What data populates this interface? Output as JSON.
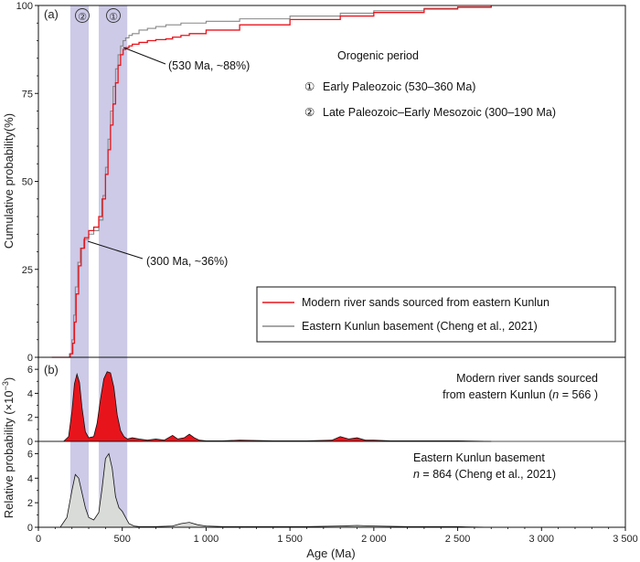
{
  "chart_data": [
    {
      "type": "line",
      "panel_label": "(a)",
      "ylabel": "Cumulative probability(%)",
      "xlim": [
        0,
        3500
      ],
      "ylim": [
        0,
        100
      ],
      "yticks": [
        0,
        25,
        50,
        75,
        100
      ],
      "series": [
        {
          "name": "Modern river sands sourced from eastern Kunlun",
          "color": "#e8141c",
          "x": [
            80,
            190,
            205,
            215,
            225,
            240,
            255,
            275,
            300,
            330,
            360,
            380,
            400,
            415,
            430,
            445,
            460,
            475,
            490,
            505,
            520,
            540,
            560,
            600,
            650,
            700,
            760,
            800,
            850,
            900,
            1000,
            1200,
            1500,
            1800,
            2000,
            2300,
            2500,
            2700
          ],
          "y": [
            0,
            1,
            4,
            10,
            18,
            26,
            31,
            34,
            36,
            37,
            40,
            45,
            52,
            59,
            66,
            72,
            78,
            83,
            86,
            87.5,
            88,
            88.5,
            89,
            89.5,
            90,
            90.3,
            90.5,
            91,
            91.5,
            92,
            93,
            94.5,
            96,
            97,
            98,
            99,
            99.5,
            100
          ]
        },
        {
          "name": "Eastern Kunlun basement (Cheng et al., 2021)",
          "color": "#888888",
          "x": [
            75,
            185,
            200,
            210,
            220,
            235,
            250,
            270,
            300,
            330,
            360,
            385,
            400,
            415,
            430,
            445,
            460,
            475,
            490,
            505,
            520,
            540,
            560,
            600,
            650,
            700,
            760,
            850,
            1000,
            1200,
            1500,
            1800,
            2000,
            2300,
            2500,
            2700
          ],
          "y": [
            0,
            1,
            5,
            12,
            20,
            27,
            31,
            33.5,
            35,
            36,
            39,
            46,
            54,
            62,
            70,
            77,
            82,
            86,
            88.5,
            90,
            90.8,
            91.5,
            92,
            93,
            93.5,
            94,
            94.5,
            95,
            95.5,
            96.2,
            97,
            97.8,
            98.5,
            99.2,
            99.6,
            100
          ]
        }
      ],
      "annotations": [
        {
          "text": "(530 Ma, ~88%)",
          "x": 530,
          "y": 88
        },
        {
          "text": "(300 Ma, ~36%)",
          "x": 300,
          "y": 36
        }
      ],
      "orogenic_title": "Orogenic period",
      "orogenic_periods": [
        {
          "symbol": "①",
          "label": "Early Paleozoic (530–360 Ma)",
          "range": [
            360,
            530
          ]
        },
        {
          "symbol": "②",
          "label": "Late Paleozoic–Early Mesozoic (300–190 Ma)",
          "range": [
            190,
            300
          ]
        }
      ],
      "legend_position": "bottom-right"
    },
    {
      "type": "area",
      "panel_label": "(b)",
      "ylabel": "Relative probability (×10⁻³)",
      "ylabel_main": "Relative probability (×10",
      "ylabel_exp": "−3",
      "ylabel_close": ")",
      "xlabel": "Age (Ma)",
      "xlim": [
        0,
        3500
      ],
      "xticks": [
        0,
        500,
        1000,
        1500,
        2000,
        2500,
        3000,
        3500
      ],
      "xtick_labels": [
        "0",
        "500",
        "1 000",
        "1 500",
        "2 000",
        "2 500",
        "3 000",
        "3 500"
      ],
      "subplots": [
        {
          "name": "Modern river sands sourced from eastern Kunlun",
          "label_line1": "Modern river sands sourced",
          "label_line2_pre": "from eastern Kunlun (",
          "label_n": "n",
          "label_line2_post": " = 566 )",
          "color": "#e8141c",
          "ylim": [
            0,
            7
          ],
          "yticks": [
            0,
            2,
            4,
            6
          ],
          "x": [
            0,
            150,
            180,
            200,
            215,
            230,
            245,
            260,
            280,
            300,
            330,
            350,
            370,
            390,
            410,
            430,
            450,
            470,
            490,
            510,
            530,
            560,
            600,
            650,
            700,
            750,
            800,
            830,
            870,
            900,
            930,
            960,
            1000,
            1100,
            1200,
            1400,
            1600,
            1750,
            1800,
            1850,
            1900,
            1950,
            2000,
            2100,
            2300,
            2500,
            2700
          ],
          "y": [
            0,
            0,
            0.4,
            2.5,
            4.8,
            5.6,
            4.9,
            2.8,
            0.8,
            0.3,
            0.4,
            1.5,
            3.5,
            5.2,
            5.8,
            5.7,
            4.5,
            2.2,
            0.9,
            0.4,
            0.2,
            0.3,
            0.2,
            0.1,
            0.2,
            0.1,
            0.5,
            0.2,
            0.3,
            0.6,
            0.3,
            0.1,
            0.05,
            0.05,
            0.1,
            0.05,
            0.05,
            0.1,
            0.4,
            0.2,
            0.3,
            0.1,
            0.1,
            0.05,
            0.05,
            0.05,
            0
          ]
        },
        {
          "name": "Eastern Kunlun basement",
          "label_line1": "Eastern Kunlun basement",
          "label_n": "n",
          "label_line2_post": " = 864 (Cheng et al., 2021)",
          "color": "#d9dbd8",
          "ylim": [
            0,
            7
          ],
          "yticks": [
            0,
            2,
            4,
            6
          ],
          "x": [
            0,
            130,
            170,
            200,
            220,
            240,
            260,
            280,
            300,
            330,
            360,
            380,
            400,
            420,
            440,
            460,
            480,
            500,
            520,
            540,
            570,
            600,
            700,
            800,
            850,
            900,
            950,
            1000,
            1100,
            1300,
            1600,
            1800,
            1900,
            2000,
            2200,
            2500,
            2700
          ],
          "y": [
            0,
            0,
            0.8,
            3.0,
            4.3,
            4.0,
            2.8,
            1.6,
            0.8,
            0.6,
            1.2,
            3.2,
            5.6,
            6.0,
            4.8,
            2.5,
            1.6,
            1.3,
            0.8,
            0.3,
            0.1,
            0.05,
            0.05,
            0.1,
            0.3,
            0.4,
            0.2,
            0.1,
            0.05,
            0.05,
            0.05,
            0.1,
            0.15,
            0.1,
            0.05,
            0.05,
            0
          ]
        }
      ]
    }
  ]
}
